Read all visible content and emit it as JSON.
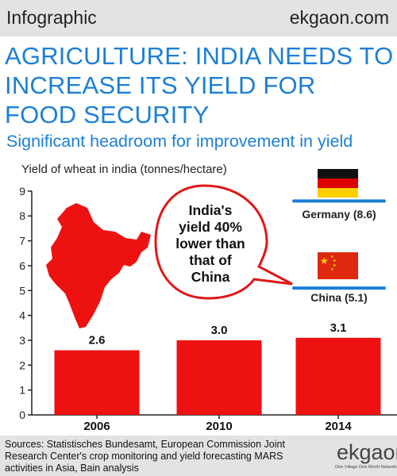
{
  "header": {
    "left": "Infographic",
    "right": "ekgaon.com"
  },
  "headline": "AGRICULTURE: INDIA NEEDS TO INCREASE ITS YIELD FOR FOOD SECURITY",
  "subhead": "Significant headroom for improvement in yield",
  "bubble": [
    "India's",
    "yield 40%",
    "lower than",
    "that of",
    "China"
  ],
  "chart_data": {
    "type": "bar",
    "ylabel": "Yield of wheat in india (tonnes/hectare)",
    "categories": [
      "2006",
      "2010",
      "2014"
    ],
    "values": [
      2.6,
      3.0,
      3.1
    ],
    "value_labels": [
      "2.6",
      "3.0",
      "3.1"
    ],
    "ylim": [
      0,
      9
    ],
    "yticks": [
      "0",
      "1",
      "2",
      "3",
      "4",
      "5",
      "6",
      "7",
      "8",
      "9"
    ],
    "bar_color": "#ee1111",
    "references": [
      {
        "label": "Germany (8.6)",
        "value": 8.6
      },
      {
        "label": "China (5.1)",
        "value": 5.1
      }
    ],
    "reference_line_color": "#1c7fd6"
  },
  "footer": {
    "sources": "Sources: Statistisches Bundesamt, European Commission Joint Research Center's crop monitoring and yield forecasting MARS activities in Asia, Bain analysis",
    "logo_text": "ekgaon",
    "logo_tagline": "One Village One World Network"
  },
  "colors": {
    "accent": "#1c7fd6",
    "india": "#ee1111",
    "band": "#e3e3e3"
  }
}
